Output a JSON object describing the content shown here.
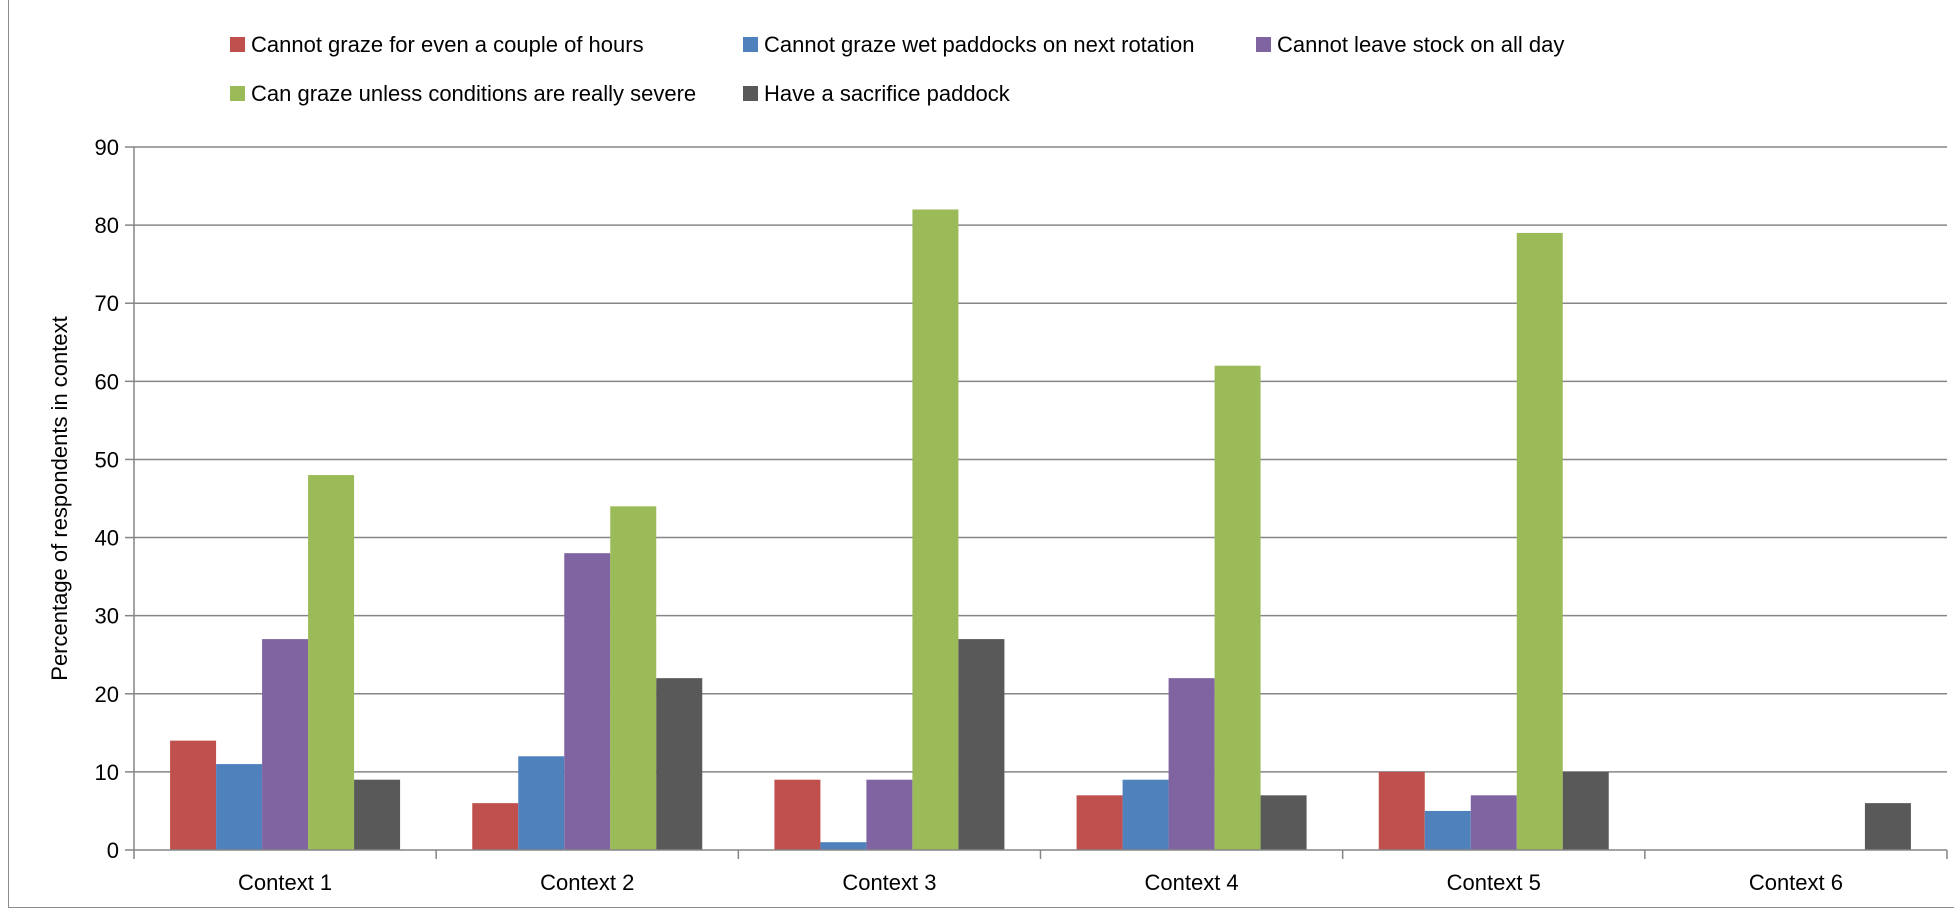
{
  "chart_data": {
    "type": "bar",
    "title": "",
    "xlabel": "",
    "ylabel": "Percentage of respondents in context",
    "categories": [
      "Context 1",
      "Context 2",
      "Context 3",
      "Context 4",
      "Context 5",
      "Context 6"
    ],
    "ylim": [
      0,
      90
    ],
    "yticks": [
      "0",
      "10",
      "20",
      "30",
      "40",
      "50",
      "60",
      "70",
      "80",
      "90"
    ],
    "grid": true,
    "legend_position": "top",
    "series": [
      {
        "name": "Cannot graze for even a couple of hours",
        "color": "#c0504d",
        "values": [
          14,
          6,
          9,
          7,
          10,
          0
        ]
      },
      {
        "name": "Cannot graze wet paddocks on next rotation",
        "color": "#4f81bd",
        "values": [
          11,
          12,
          1,
          9,
          5,
          0
        ]
      },
      {
        "name": "Cannot leave stock on all day",
        "color": "#8064a2",
        "values": [
          27,
          38,
          9,
          22,
          7,
          0
        ]
      },
      {
        "name": "Can graze unless conditions are really severe",
        "color": "#9bbb59",
        "values": [
          48,
          44,
          82,
          62,
          79,
          0
        ]
      },
      {
        "name": "Have a sacrifice paddock",
        "color": "#595959",
        "values": [
          9,
          22,
          27,
          7,
          10,
          6
        ]
      }
    ]
  }
}
